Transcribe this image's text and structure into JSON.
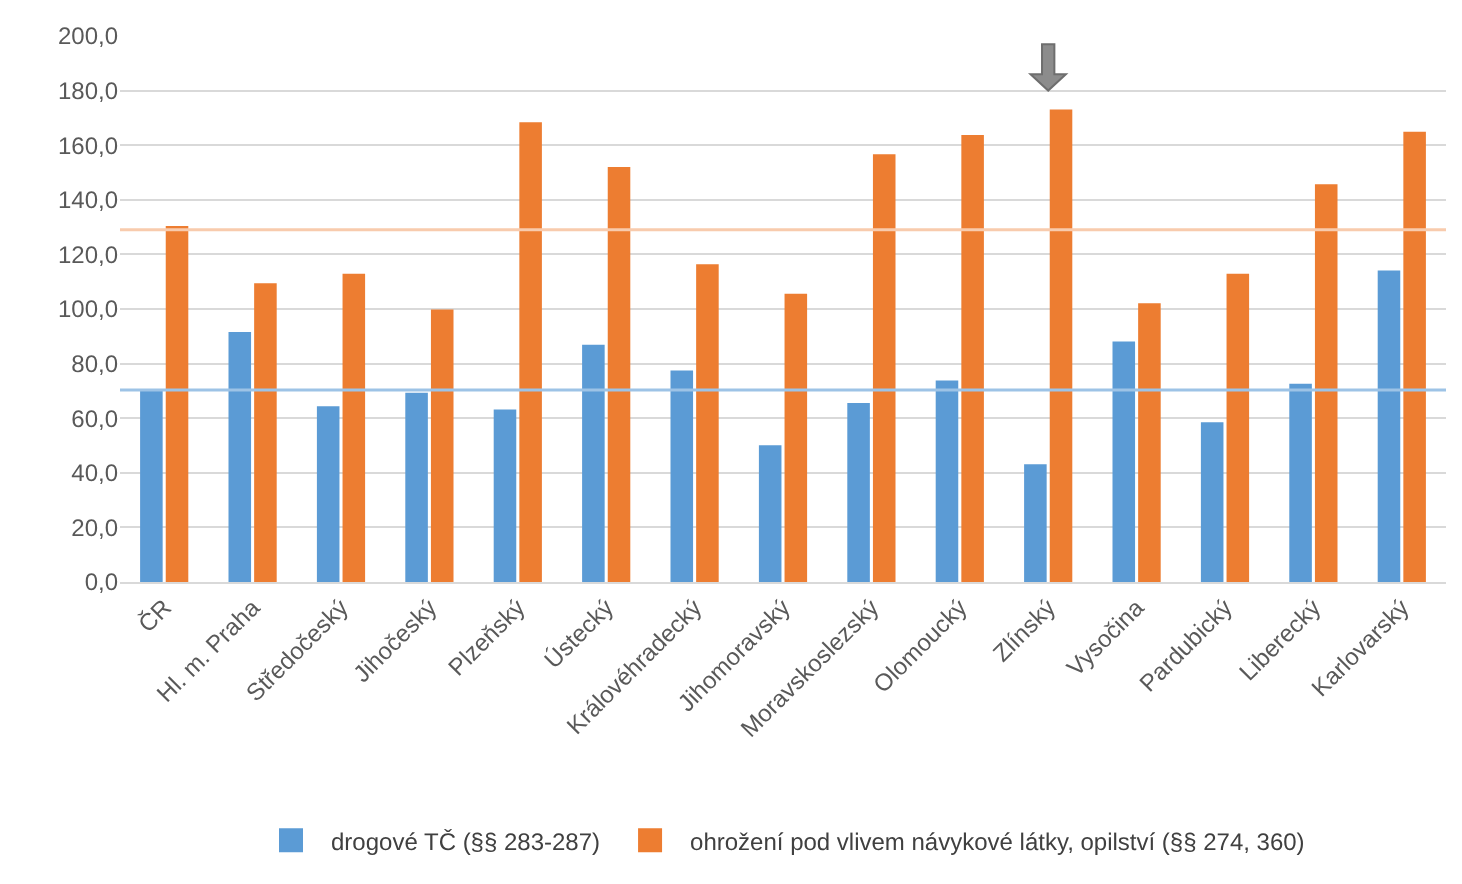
{
  "chart_data": {
    "type": "bar",
    "categories": [
      "ČR",
      "Hl. m. Praha",
      "Středočeský",
      "Jihočeský",
      "Plzeňský",
      "Ústecký",
      "Královéhradecký",
      "Jihomoravský",
      "Moravskoslezský",
      "Olomoucký",
      "Zlínský",
      "Vysočina",
      "Pardubický",
      "Liberecký",
      "Karlovarský"
    ],
    "series": [
      {
        "name": "drogové TČ (§§ 283-287)",
        "color": "#5b9bd5",
        "values": [
          70.3,
          91.6,
          64.4,
          69.3,
          63.2,
          86.9,
          77.5,
          50.1,
          65.6,
          73.8,
          43.1,
          88.1,
          58.5,
          72.6,
          114.1
        ]
      },
      {
        "name": "ohrožení pod vlivem návykové látky, opilství (§§ 274, 360)",
        "color": "#ed7d31",
        "values": [
          130.4,
          109.4,
          112.9,
          99.8,
          168.4,
          152.0,
          116.4,
          105.6,
          156.7,
          163.7,
          173.1,
          102.1,
          112.9,
          145.7,
          164.9
        ]
      }
    ],
    "ylim": [
      0,
      200
    ],
    "yticks": [
      {
        "value": 0,
        "label": "0,0"
      },
      {
        "value": 20,
        "label": "20,0"
      },
      {
        "value": 40,
        "label": "40,0"
      },
      {
        "value": 60,
        "label": "60,0"
      },
      {
        "value": 80,
        "label": "80,0"
      },
      {
        "value": 100,
        "label": "100,0"
      },
      {
        "value": 120,
        "label": "120,0"
      },
      {
        "value": 140,
        "label": "140,0"
      },
      {
        "value": 160,
        "label": "160,0"
      },
      {
        "value": 180,
        "label": "180,0"
      },
      {
        "value": 200,
        "label": "200,0"
      }
    ],
    "ref_lines": [
      {
        "axis": "y",
        "value": 70.3,
        "color": "#9dc3e6"
      },
      {
        "axis": "y",
        "value": 129.0,
        "color": "#f8cbad"
      }
    ],
    "grid": "y",
    "legend": "bottom"
  }
}
